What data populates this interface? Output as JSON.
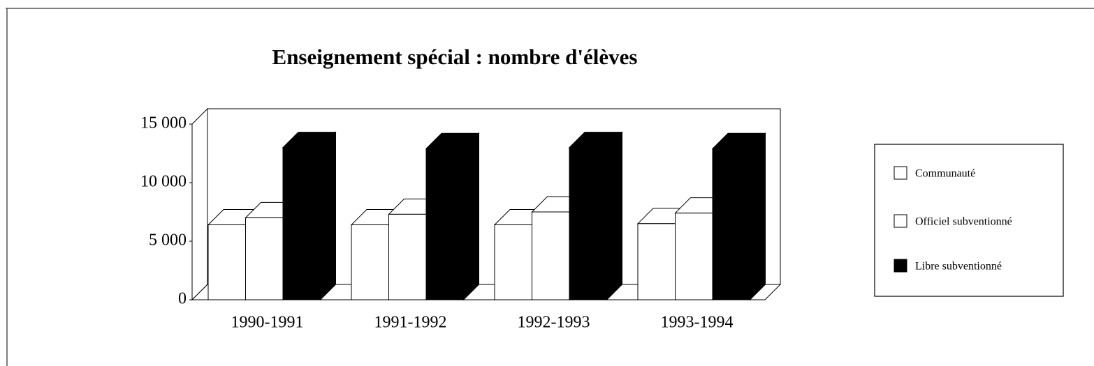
{
  "chart_data": {
    "type": "bar3d",
    "title": "Enseignement  spécial : nombre d'élèves",
    "categories": [
      "1990-1991",
      "1991-1992",
      "1992-1993",
      "1993-1994"
    ],
    "series": [
      {
        "name": "Communauté",
        "color": "#ffffff",
        "values": [
          6400,
          6400,
          6400,
          6500
        ]
      },
      {
        "name": "Officiel subventionné",
        "color": "#ffffff",
        "values": [
          7000,
          7300,
          7500,
          7400
        ]
      },
      {
        "name": "Libre subventionné",
        "color": "#000000",
        "values": [
          13000,
          12900,
          13000,
          12900
        ]
      }
    ],
    "ylim": [
      0,
      15000
    ],
    "yticks": [
      0,
      {
        "value": 5000,
        "label": "5 000"
      },
      {
        "value": 10000,
        "label": "10 000"
      },
      {
        "value": 15000,
        "label": "15 000"
      }
    ],
    "legend": "right"
  }
}
